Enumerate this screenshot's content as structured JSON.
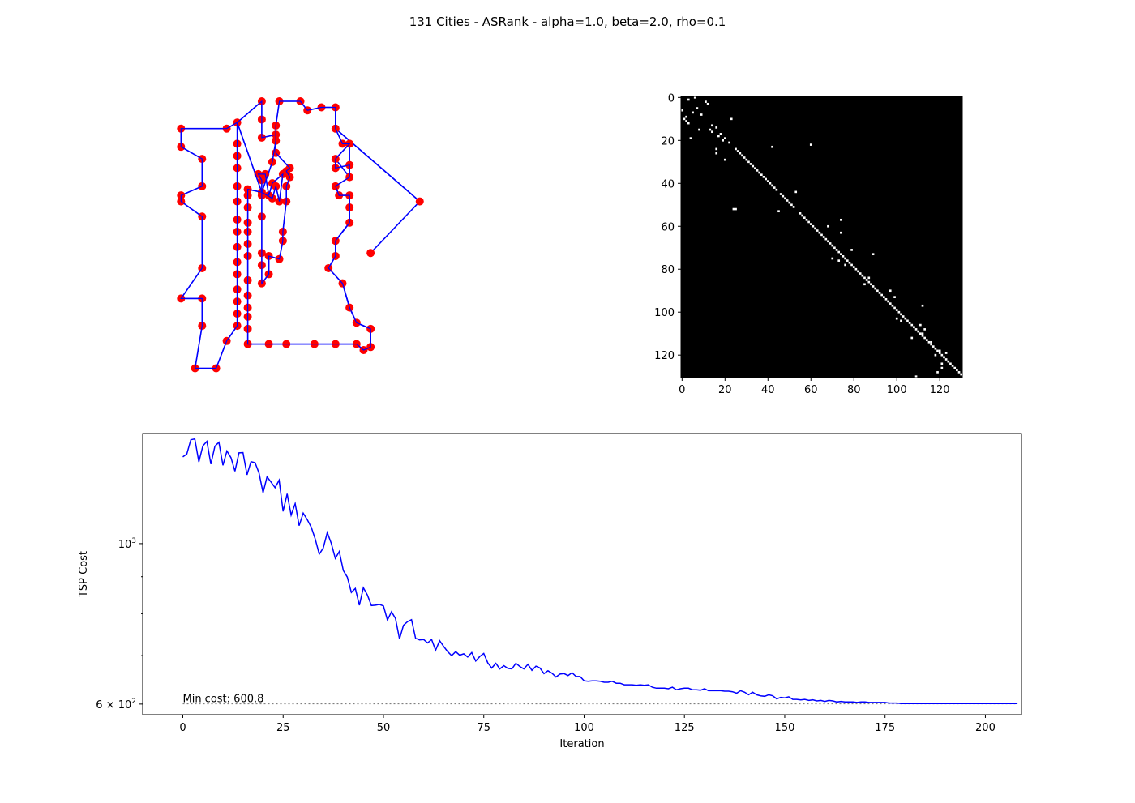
{
  "figure": {
    "title": "131 Cities - ASRank - alpha=1.0, beta=2.0, rho=0.1"
  },
  "chart_data": [
    {
      "type": "scatter",
      "panel": "tour",
      "description_note": "",
      "point_color": "#ff0000",
      "line_color": "#0000ff",
      "axes_visible": false,
      "xlim": [
        -6,
        106
      ],
      "ylim": [
        -2,
        88
      ],
      "tour": [
        [
          20,
          81
        ],
        [
          20,
          74
        ],
        [
          20,
          70
        ],
        [
          20,
          66
        ],
        [
          20,
          60
        ],
        [
          20,
          55
        ],
        [
          20,
          49
        ],
        [
          20,
          45
        ],
        [
          20,
          40
        ],
        [
          20,
          35
        ],
        [
          20,
          31
        ],
        [
          20,
          26
        ],
        [
          20,
          22
        ],
        [
          20,
          18
        ],
        [
          20,
          14
        ],
        [
          17,
          9
        ],
        [
          14,
          0
        ],
        [
          8,
          0
        ],
        [
          10,
          14
        ],
        [
          10,
          23
        ],
        [
          4,
          23
        ],
        [
          10,
          33
        ],
        [
          10,
          50
        ],
        [
          4,
          55
        ],
        [
          4,
          57
        ],
        [
          10,
          60
        ],
        [
          10,
          69
        ],
        [
          4,
          73
        ],
        [
          4,
          79
        ],
        [
          17,
          79
        ],
        [
          20,
          81
        ],
        [
          27,
          88
        ],
        [
          27,
          82
        ],
        [
          27,
          76
        ],
        [
          31,
          77
        ],
        [
          31,
          71
        ],
        [
          35,
          66
        ],
        [
          34,
          65
        ],
        [
          35,
          63
        ],
        [
          34,
          60
        ],
        [
          34,
          55
        ],
        [
          33,
          45
        ],
        [
          33,
          42
        ],
        [
          32,
          36
        ],
        [
          29,
          37
        ],
        [
          29,
          31
        ],
        [
          27,
          28
        ],
        [
          27,
          34
        ],
        [
          27,
          38
        ],
        [
          27,
          50
        ],
        [
          27,
          57
        ],
        [
          27,
          62
        ],
        [
          26,
          64
        ],
        [
          28,
          64
        ],
        [
          29,
          57
        ],
        [
          30,
          61
        ],
        [
          33,
          64
        ],
        [
          32,
          55
        ],
        [
          31,
          60
        ],
        [
          30,
          56
        ],
        [
          27,
          58
        ],
        [
          23,
          59
        ],
        [
          23,
          57
        ],
        [
          23,
          53
        ],
        [
          23,
          48
        ],
        [
          23,
          45
        ],
        [
          23,
          41
        ],
        [
          23,
          37
        ],
        [
          23,
          29
        ],
        [
          23,
          24
        ],
        [
          23,
          20
        ],
        [
          23,
          17
        ],
        [
          23,
          13
        ],
        [
          23,
          8
        ],
        [
          29,
          8
        ],
        [
          34,
          8
        ],
        [
          42,
          8
        ],
        [
          48,
          8
        ],
        [
          54,
          8
        ],
        [
          56,
          6
        ],
        [
          58,
          7
        ],
        [
          58,
          13
        ],
        [
          54,
          15
        ],
        [
          52,
          20
        ],
        [
          50,
          28
        ],
        [
          46,
          33
        ],
        [
          48,
          37
        ],
        [
          48,
          42
        ],
        [
          52,
          48
        ],
        [
          52,
          53
        ],
        [
          52,
          57
        ],
        [
          49,
          57
        ],
        [
          48,
          60
        ],
        [
          52,
          63
        ],
        [
          52,
          67
        ],
        [
          48,
          66
        ],
        [
          48,
          69
        ],
        [
          52,
          74
        ],
        [
          50,
          74
        ],
        [
          48,
          79
        ],
        [
          48,
          86
        ],
        [
          44,
          86
        ],
        [
          40,
          85
        ],
        [
          38,
          88
        ],
        [
          32,
          88
        ],
        [
          31,
          80
        ],
        [
          31,
          75
        ],
        [
          30,
          68
        ],
        [
          27,
          58
        ],
        [
          20,
          81
        ]
      ],
      "tour_note": "",
      "extra_segments": [
        [
          [
            72,
            55
          ],
          [
            48,
            79
          ]
        ],
        [
          [
            48,
            79
          ],
          [
            48,
            86
          ]
        ],
        [
          [
            52,
            74
          ],
          [
            52,
            67
          ]
        ],
        [
          [
            48,
            69
          ],
          [
            52,
            63
          ]
        ],
        [
          [
            49,
            57
          ],
          [
            48,
            60
          ]
        ],
        [
          [
            52,
            57
          ],
          [
            52,
            53
          ]
        ],
        [
          [
            52,
            48
          ],
          [
            48,
            42
          ]
        ],
        [
          [
            48,
            37
          ],
          [
            46,
            33
          ]
        ],
        [
          [
            50,
            28
          ],
          [
            52,
            20
          ]
        ],
        [
          [
            52,
            20
          ],
          [
            54,
            15
          ]
        ],
        [
          [
            54,
            15
          ],
          [
            58,
            13
          ]
        ],
        [
          [
            58,
            13
          ],
          [
            58,
            7
          ]
        ],
        [
          [
            48,
            79
          ],
          [
            72,
            55
          ]
        ],
        [
          [
            72,
            55
          ],
          [
            58,
            38
          ]
        ]
      ]
    },
    {
      "type": "heatmap",
      "panel": "pheromone-matrix",
      "size": 131,
      "xlim": [
        0,
        131
      ],
      "ylim": [
        0,
        131
      ],
      "xticks": [
        0,
        20,
        40,
        60,
        80,
        100,
        120
      ],
      "yticks": [
        0,
        20,
        40,
        60,
        80,
        100,
        120
      ],
      "background": "#000000",
      "cell_color": "#ffffff",
      "cells": [
        [
          0,
          6
        ],
        [
          1,
          3
        ],
        [
          2,
          11
        ],
        [
          3,
          12
        ],
        [
          5,
          7
        ],
        [
          6,
          0
        ],
        [
          7,
          5
        ],
        [
          8,
          9
        ],
        [
          9,
          2
        ],
        [
          10,
          1
        ],
        [
          11,
          2
        ],
        [
          12,
          3
        ],
        [
          13,
          14
        ],
        [
          14,
          16
        ],
        [
          15,
          13
        ],
        [
          16,
          14
        ],
        [
          17,
          18
        ],
        [
          18,
          17
        ],
        [
          19,
          20
        ],
        [
          20,
          19
        ],
        [
          21,
          22
        ],
        [
          22,
          60
        ],
        [
          23,
          42
        ],
        [
          24,
          25
        ],
        [
          25,
          26
        ],
        [
          26,
          27
        ],
        [
          27,
          28
        ],
        [
          28,
          29
        ],
        [
          29,
          30
        ],
        [
          30,
          31
        ],
        [
          31,
          32
        ],
        [
          32,
          33
        ],
        [
          33,
          34
        ],
        [
          34,
          35
        ],
        [
          35,
          36
        ],
        [
          36,
          37
        ],
        [
          37,
          38
        ],
        [
          38,
          39
        ],
        [
          39,
          40
        ],
        [
          40,
          41
        ],
        [
          41,
          42
        ],
        [
          42,
          43
        ],
        [
          43,
          44
        ],
        [
          44,
          53
        ],
        [
          45,
          46
        ],
        [
          46,
          47
        ],
        [
          47,
          48
        ],
        [
          48,
          49
        ],
        [
          49,
          50
        ],
        [
          50,
          51
        ],
        [
          51,
          52
        ],
        [
          52,
          25
        ],
        [
          53,
          45
        ],
        [
          54,
          55
        ],
        [
          55,
          56
        ],
        [
          56,
          57
        ],
        [
          57,
          58
        ],
        [
          58,
          59
        ],
        [
          59,
          60
        ],
        [
          60,
          61
        ],
        [
          61,
          62
        ],
        [
          62,
          63
        ],
        [
          63,
          64
        ],
        [
          64,
          65
        ],
        [
          65,
          66
        ],
        [
          66,
          67
        ],
        [
          67,
          68
        ],
        [
          68,
          69
        ],
        [
          69,
          70
        ],
        [
          70,
          71
        ],
        [
          71,
          72
        ],
        [
          72,
          73
        ],
        [
          73,
          74
        ],
        [
          74,
          75
        ],
        [
          75,
          76
        ],
        [
          76,
          77
        ],
        [
          77,
          78
        ],
        [
          78,
          79
        ],
        [
          79,
          80
        ],
        [
          80,
          81
        ],
        [
          81,
          82
        ],
        [
          82,
          83
        ],
        [
          83,
          84
        ],
        [
          84,
          85
        ],
        [
          85,
          86
        ],
        [
          86,
          87
        ],
        [
          87,
          88
        ],
        [
          88,
          89
        ],
        [
          89,
          90
        ],
        [
          90,
          91
        ],
        [
          91,
          92
        ],
        [
          92,
          93
        ],
        [
          93,
          94
        ],
        [
          94,
          95
        ],
        [
          95,
          96
        ],
        [
          96,
          97
        ],
        [
          97,
          98
        ],
        [
          98,
          99
        ],
        [
          99,
          100
        ],
        [
          100,
          101
        ],
        [
          101,
          102
        ],
        [
          102,
          103
        ],
        [
          103,
          104
        ],
        [
          104,
          105
        ],
        [
          105,
          106
        ],
        [
          106,
          107
        ],
        [
          107,
          108
        ],
        [
          108,
          109
        ],
        [
          109,
          110
        ],
        [
          110,
          111
        ],
        [
          111,
          112
        ],
        [
          112,
          113
        ],
        [
          113,
          114
        ],
        [
          114,
          115
        ],
        [
          115,
          116
        ],
        [
          116,
          117
        ],
        [
          117,
          118
        ],
        [
          118,
          119
        ],
        [
          119,
          120
        ],
        [
          120,
          121
        ],
        [
          121,
          122
        ],
        [
          122,
          123
        ],
        [
          123,
          124
        ],
        [
          124,
          125
        ],
        [
          125,
          126
        ],
        [
          126,
          127
        ],
        [
          127,
          128
        ],
        [
          128,
          129
        ],
        [
          129,
          130
        ],
        [
          130,
          109
        ],
        [
          10,
          23
        ],
        [
          15,
          8
        ],
        [
          19,
          4
        ],
        [
          24,
          16
        ],
        [
          26,
          16
        ],
        [
          29,
          20
        ],
        [
          52,
          24
        ],
        [
          57,
          74
        ],
        [
          60,
          68
        ],
        [
          63,
          74
        ],
        [
          71,
          79
        ],
        [
          73,
          89
        ],
        [
          75,
          70
        ],
        [
          76,
          73
        ],
        [
          78,
          76
        ],
        [
          84,
          87
        ],
        [
          87,
          85
        ],
        [
          90,
          97
        ],
        [
          93,
          99
        ],
        [
          97,
          112
        ],
        [
          103,
          100
        ],
        [
          104,
          102
        ],
        [
          106,
          111
        ],
        [
          108,
          113
        ],
        [
          110,
          112
        ],
        [
          112,
          107
        ],
        [
          114,
          116
        ],
        [
          118,
          120
        ],
        [
          119,
          123
        ],
        [
          120,
          118
        ],
        [
          124,
          121
        ],
        [
          126,
          121
        ],
        [
          128,
          119
        ]
      ],
      "cells_note": ""
    },
    {
      "type": "line",
      "panel": "convergence",
      "xlabel": "Iteration",
      "ylabel": "TSP Cost",
      "yscale": "log",
      "xlim": [
        -10,
        209
      ],
      "ylim": [
        580,
        1420
      ],
      "xticks": [
        0,
        25,
        50,
        75,
        100,
        125,
        150,
        175,
        200
      ],
      "yticks": [
        {
          "value": 1000,
          "label": "10",
          "sup": "3"
        },
        {
          "value": 600,
          "label": "6 × 10",
          "sup": "2"
        }
      ],
      "minor_yticks": [
        700,
        800,
        900
      ],
      "line_color": "#0000ff",
      "x_start": 0,
      "values": [
        1318,
        1330,
        1392,
        1396,
        1297,
        1365,
        1385,
        1288,
        1364,
        1381,
        1283,
        1343,
        1315,
        1259,
        1335,
        1336,
        1245,
        1298,
        1294,
        1252,
        1176,
        1237,
        1216,
        1195,
        1224,
        1108,
        1172,
        1095,
        1136,
        1059,
        1102,
        1080,
        1054,
        1015,
        967,
        986,
        1036,
        1001,
        954,
        975,
        918,
        899,
        856,
        867,
        822,
        869,
        849,
        821,
        822,
        824,
        820,
        784,
        805,
        788,
        738,
        771,
        780,
        785,
        740,
        736,
        737,
        729,
        737,
        712,
        734,
        721,
        709,
        700,
        709,
        701,
        704,
        697,
        707,
        688,
        698,
        705,
        684,
        673,
        683,
        671,
        678,
        672,
        671,
        683,
        676,
        671,
        681,
        668,
        677,
        673,
        661,
        667,
        662,
        654,
        660,
        661,
        657,
        663,
        655,
        655,
        646,
        645,
        646,
        646,
        645,
        643,
        643,
        645,
        641,
        641,
        638,
        638,
        638,
        637,
        638,
        637,
        638,
        633,
        631,
        631,
        631,
        630,
        633,
        628,
        630,
        631,
        631,
        628,
        628,
        627,
        630,
        626,
        626,
        626,
        626,
        625,
        625,
        624,
        621,
        626,
        623,
        618,
        623,
        618,
        616,
        615,
        618,
        616,
        610,
        613,
        612,
        614,
        609,
        609,
        608,
        609,
        607,
        608,
        606,
        607,
        605,
        607,
        606,
        604,
        605,
        604,
        604,
        604,
        603,
        604,
        604,
        603,
        603,
        603,
        603,
        603,
        602,
        602,
        602,
        601,
        601,
        601,
        601,
        601,
        601,
        601,
        601,
        601,
        601,
        601,
        601,
        601,
        601,
        601,
        601,
        601,
        601,
        601,
        601,
        601,
        601,
        601,
        601,
        601,
        601,
        601,
        601,
        601,
        601
      ],
      "min_cost": 600.8,
      "min_cost_label": "Min cost: 600.8",
      "min_line_color": "#808080"
    }
  ]
}
